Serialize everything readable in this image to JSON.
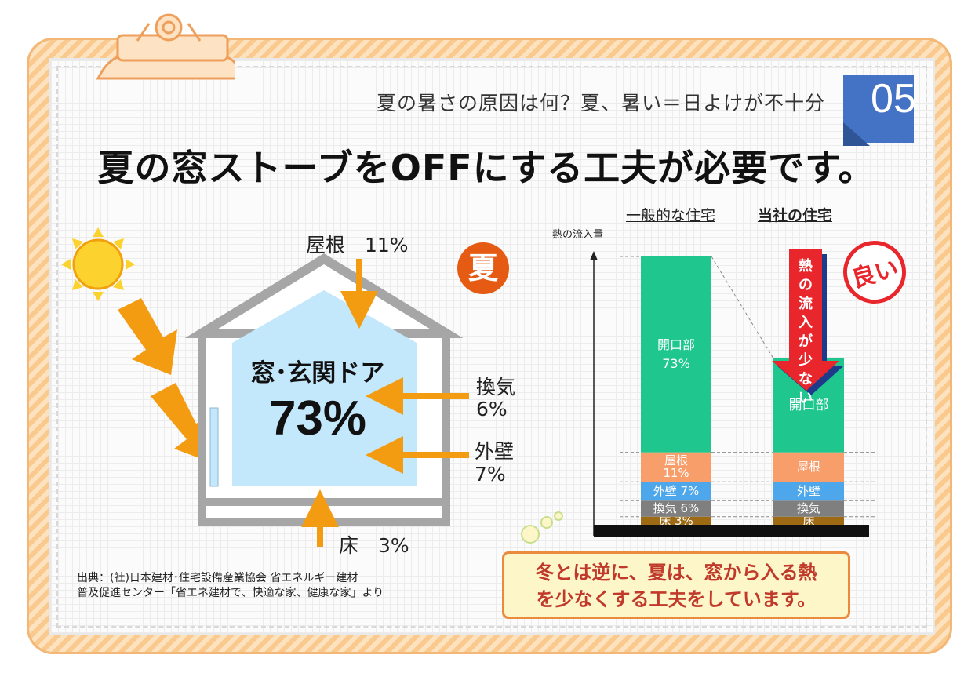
{
  "subtitle": "夏の暑さの原因は何？夏、暑い＝日よけが不十分",
  "page_number": "05",
  "headline": "夏の窓ストーブをOFFにする工夫が必要です。",
  "season_badge": "夏",
  "house": {
    "main_label": "窓･玄関ドア",
    "main_pct": "73%",
    "roof": "屋根　11%",
    "vent_name": "換気",
    "vent_pct": "6%",
    "wall_name": "外壁",
    "wall_pct": "7%",
    "floor": "床　3%"
  },
  "source": {
    "line1": "出典：(社)日本建材･住宅設備産業協会 省エネルギー建材",
    "line2": "普及促進センター「省エネ建材で、快適な家、健康な家」より"
  },
  "chart_data": {
    "type": "bar",
    "ylabel": "熱の流入量",
    "categories": [
      "一般的な住宅",
      "当社の住宅"
    ],
    "series": [
      {
        "name": "床",
        "label_general": "床 3%",
        "label_ours": "床",
        "color": "#9e6a14"
      },
      {
        "name": "換気",
        "label_general": "換気 6%",
        "label_ours": "換気",
        "color": "#7f7f7f"
      },
      {
        "name": "外壁",
        "label_general": "外壁 7%",
        "label_ours": "外壁",
        "color": "#4ea7ea"
      },
      {
        "name": "屋根",
        "label_general": "屋根 11%",
        "label_ours": "屋根",
        "color": "#f79e6b"
      },
      {
        "name": "開口部",
        "label_general": "開口部 73%",
        "label_ours": "開口部",
        "color": "#1fc78f"
      }
    ],
    "values_general": [
      3,
      6,
      7,
      11,
      73
    ],
    "values_ours": [
      3,
      6,
      7,
      11,
      35
    ],
    "arrow_text": "熱の流入が少ない",
    "good_badge": "良い"
  },
  "bubble": {
    "line1": "冬とは逆に、夏は、窓から入る熱",
    "line2": "を少なくする工夫をしています。"
  },
  "colors": {
    "accent_orange": "#f39c12",
    "badge_red": "#e8262b",
    "tag_blue": "#4472c4"
  }
}
